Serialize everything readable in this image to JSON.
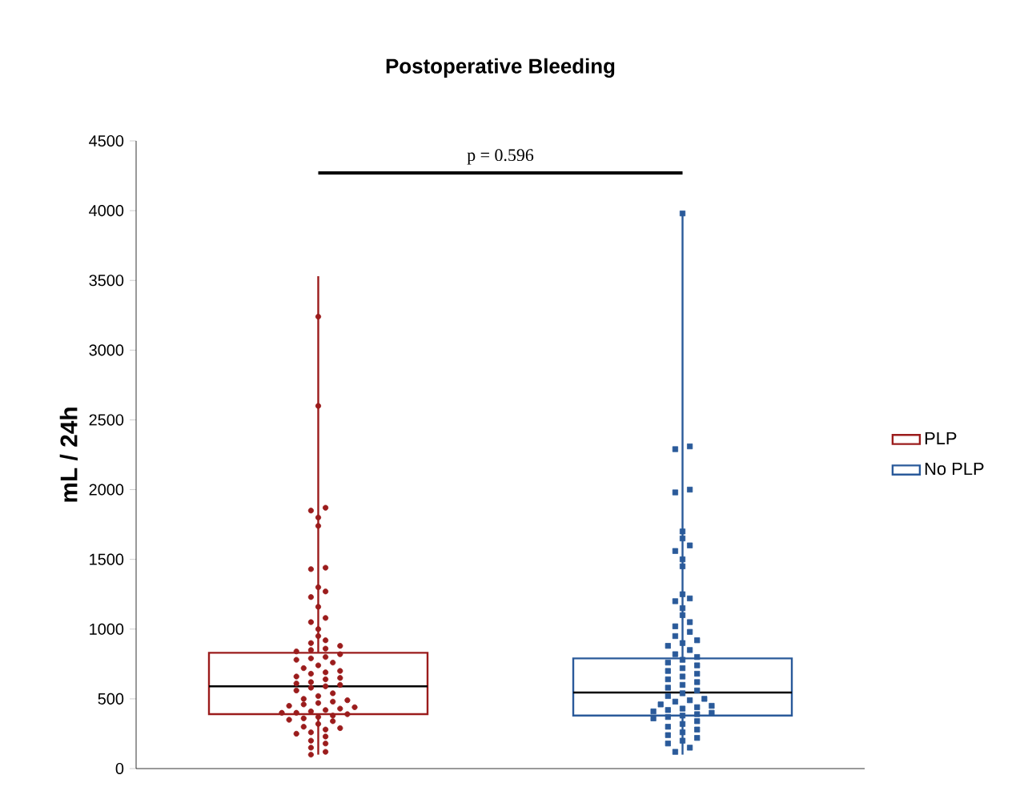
{
  "chart_data": {
    "type": "box",
    "title": "Postoperative Bleeding",
    "ylabel": "mL / 24h",
    "categories": [
      null,
      null
    ],
    "ylim": [
      0,
      4500
    ],
    "yticks": [
      0,
      500,
      1000,
      1500,
      2000,
      2500,
      3000,
      3500,
      4000,
      4500
    ],
    "grid": false,
    "legend": "right",
    "tick_labels": "y",
    "annotations": [
      "p = 0.596"
    ],
    "series": [
      {
        "name": "PLP",
        "color": "#9b1c1c",
        "marker": "circle",
        "boxes": [
          {
            "low": 100,
            "q1": 390,
            "median": 590,
            "q3": 830,
            "high": 3530,
            "outliers": [
              3240,
              2600,
              1870,
              1850,
              1800,
              1740,
              1440,
              1430,
              1300,
              1270,
              1230,
              1160,
              1080,
              1050,
              1000,
              950,
              920,
              900,
              880,
              860,
              850,
              840,
              820,
              800,
              790,
              780,
              760,
              740,
              720,
              700,
              690,
              680,
              660,
              650,
              640,
              620,
              610,
              600,
              590,
              580,
              560,
              540,
              520,
              500,
              490,
              480,
              470,
              460,
              450,
              440,
              430,
              420,
              410,
              400,
              400,
              390,
              380,
              370,
              360,
              350,
              340,
              320,
              300,
              290,
              280,
              260,
              250,
              230,
              200,
              180,
              150,
              120,
              100
            ]
          },
          null
        ]
      },
      {
        "name": "No PLP",
        "color": "#2a5a9a",
        "marker": "square",
        "boxes": [
          null,
          {
            "low": 100,
            "q1": 380,
            "median": 545,
            "q3": 790,
            "high": 3990,
            "outliers": [
              3980,
              2310,
              2290,
              2000,
              1980,
              1700,
              1650,
              1600,
              1560,
              1500,
              1450,
              1250,
              1220,
              1200,
              1150,
              1100,
              1050,
              1020,
              980,
              950,
              920,
              900,
              880,
              850,
              820,
              800,
              780,
              760,
              740,
              720,
              700,
              680,
              660,
              640,
              620,
              600,
              580,
              560,
              540,
              520,
              500,
              490,
              480,
              460,
              450,
              440,
              430,
              420,
              410,
              400,
              390,
              380,
              370,
              360,
              340,
              320,
              300,
              280,
              260,
              240,
              220,
              200,
              180,
              150,
              120
            ]
          }
        ]
      }
    ]
  }
}
